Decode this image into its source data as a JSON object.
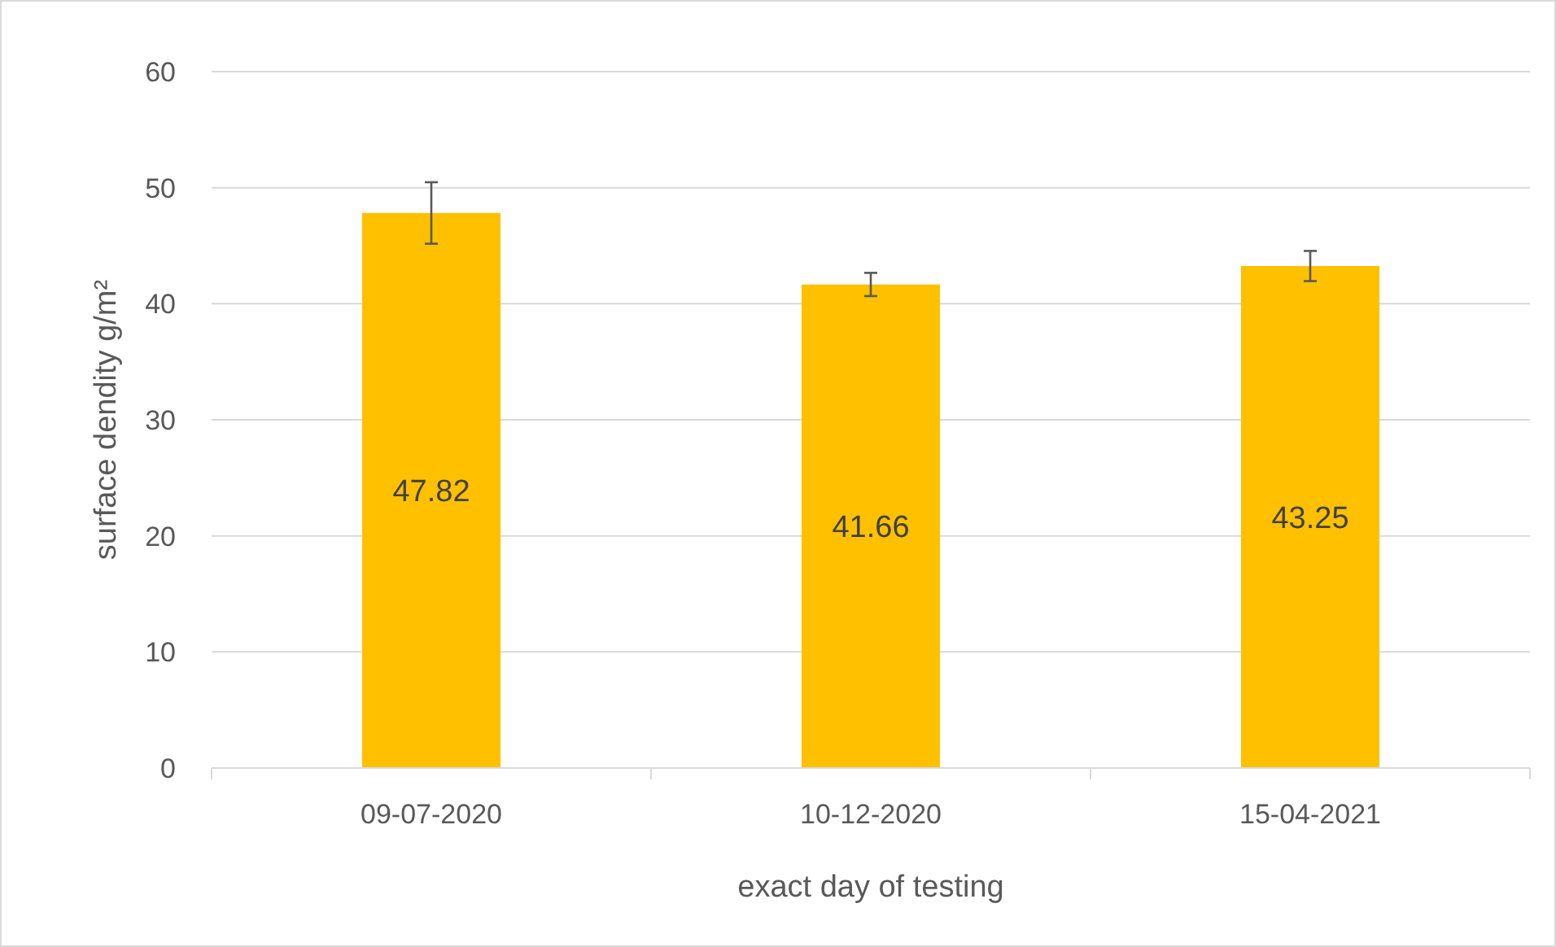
{
  "chart_data": {
    "type": "bar",
    "xlabel": "exact day of testing",
    "ylabel": "surface dendity g/m²",
    "categories": [
      "09-07-2020",
      "10-12-2020",
      "15-04-2021"
    ],
    "values": [
      47.82,
      41.66,
      43.25
    ],
    "color": "#ffc000",
    "errors": [
      2.65,
      1.0,
      1.3
    ],
    "ylim": [
      0,
      60
    ],
    "yticks": [
      0,
      10,
      20,
      30,
      40,
      50,
      60
    ],
    "grid": "y",
    "data_labels": true
  }
}
